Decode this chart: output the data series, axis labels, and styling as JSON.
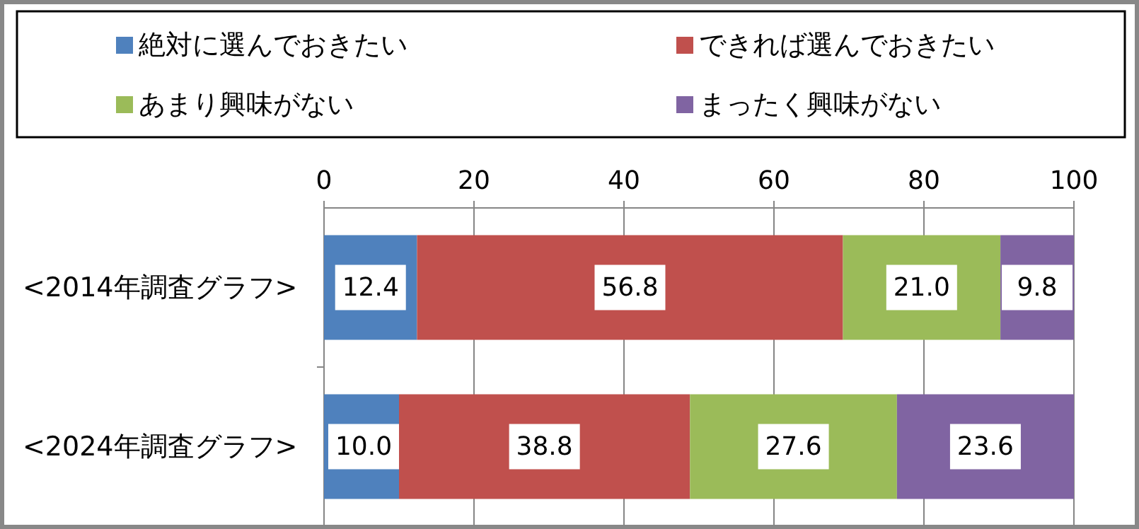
{
  "chart_data": {
    "type": "bar",
    "orientation": "horizontal",
    "stacked": true,
    "categories": [
      "<2014年調査グラフ>",
      "<2024年調査グラフ>"
    ],
    "series": [
      {
        "name": "絶対に選んでおきたい",
        "color": "#4f81bd",
        "values": [
          12.4,
          10.0
        ],
        "value_labels": [
          "12.4",
          "10.0"
        ]
      },
      {
        "name": "できれば選んでおきたい",
        "color": "#c0504d",
        "values": [
          56.8,
          38.8
        ],
        "value_labels": [
          "56.8",
          "38.8"
        ]
      },
      {
        "name": "あまり興味がない",
        "color": "#9bbb59",
        "values": [
          21.0,
          27.6
        ],
        "value_labels": [
          "21.0",
          "27.6"
        ]
      },
      {
        "name": "まったく興味がない",
        "color": "#8064a2",
        "values": [
          9.8,
          23.6
        ],
        "value_labels": [
          "9.8",
          "23.6"
        ]
      }
    ],
    "xlim": [
      0,
      100
    ],
    "xticks": [
      0,
      20,
      40,
      60,
      80,
      100
    ],
    "grid": "x",
    "legend": "top"
  }
}
